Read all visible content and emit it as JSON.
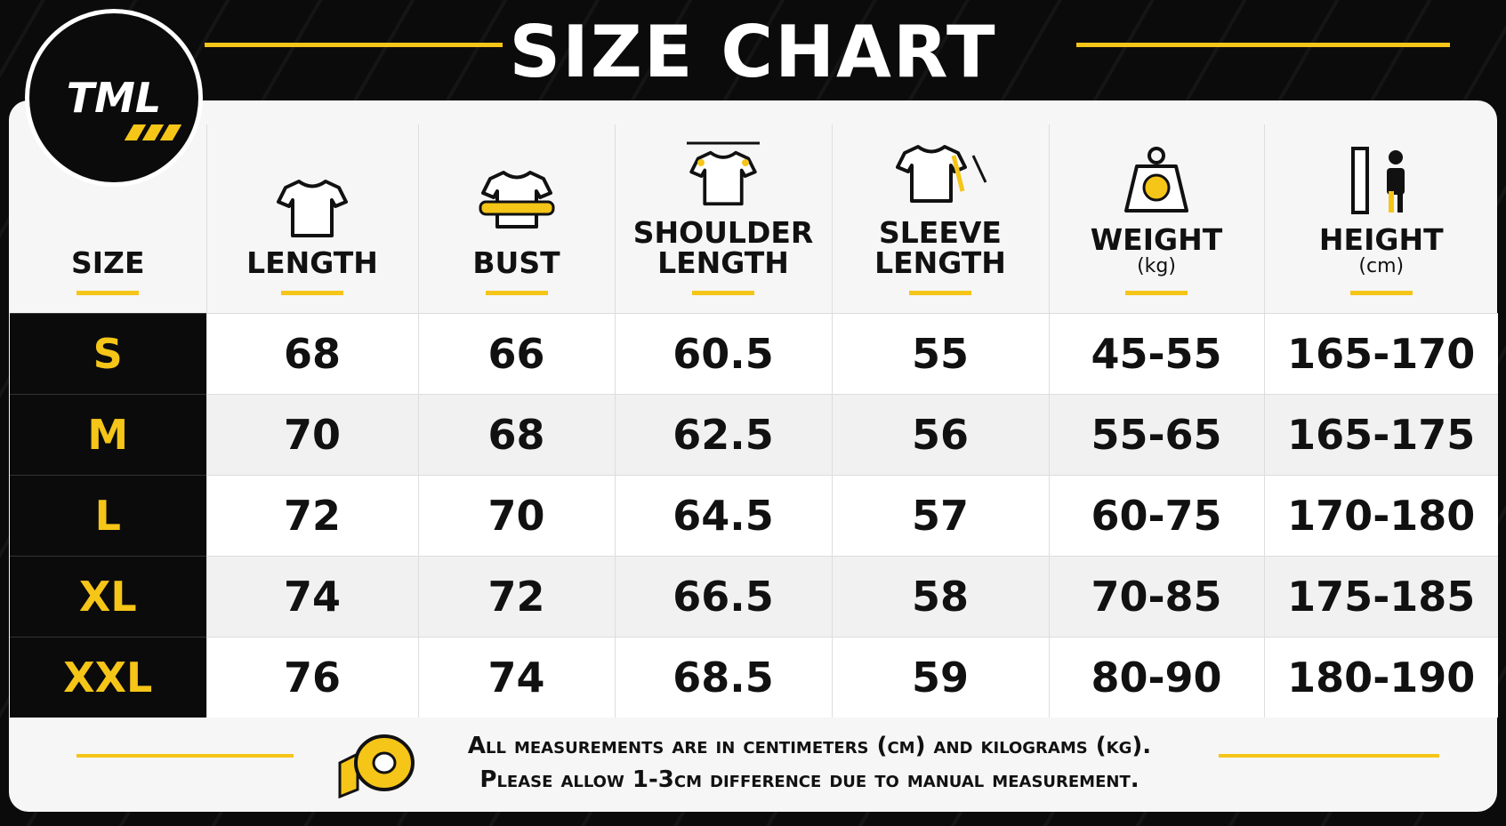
{
  "logo": "TML",
  "header": {
    "title": "SIZE CHART"
  },
  "table": {
    "columns": [
      {
        "lines": [
          "SIZE"
        ]
      },
      {
        "lines": [
          "LENGTH"
        ]
      },
      {
        "lines": [
          "BUST"
        ]
      },
      {
        "lines": [
          "SHOULDER",
          "LENGTH"
        ]
      },
      {
        "lines": [
          "SLEEVE",
          "LENGTH"
        ]
      },
      {
        "lines": [
          "WEIGHT"
        ],
        "unit": "(kg)"
      },
      {
        "lines": [
          "HEIGHT"
        ],
        "unit": "(cm)"
      }
    ],
    "rows": [
      [
        "S",
        "68",
        "66",
        "60.5",
        "55",
        "45-55",
        "165-170"
      ],
      [
        "M",
        "70",
        "68",
        "62.5",
        "56",
        "55-65",
        "165-175"
      ],
      [
        "L",
        "72",
        "70",
        "64.5",
        "57",
        "60-75",
        "170-180"
      ],
      [
        "XL",
        "74",
        "72",
        "66.5",
        "58",
        "70-85",
        "175-185"
      ],
      [
        "XXL",
        "76",
        "74",
        "68.5",
        "59",
        "80-90",
        "180-190"
      ]
    ]
  },
  "footer": {
    "notes": [
      "All measurements are in centimeters (cm) and kilograms (kg).",
      "Please allow 1-3cm difference due to manual measurement."
    ]
  }
}
